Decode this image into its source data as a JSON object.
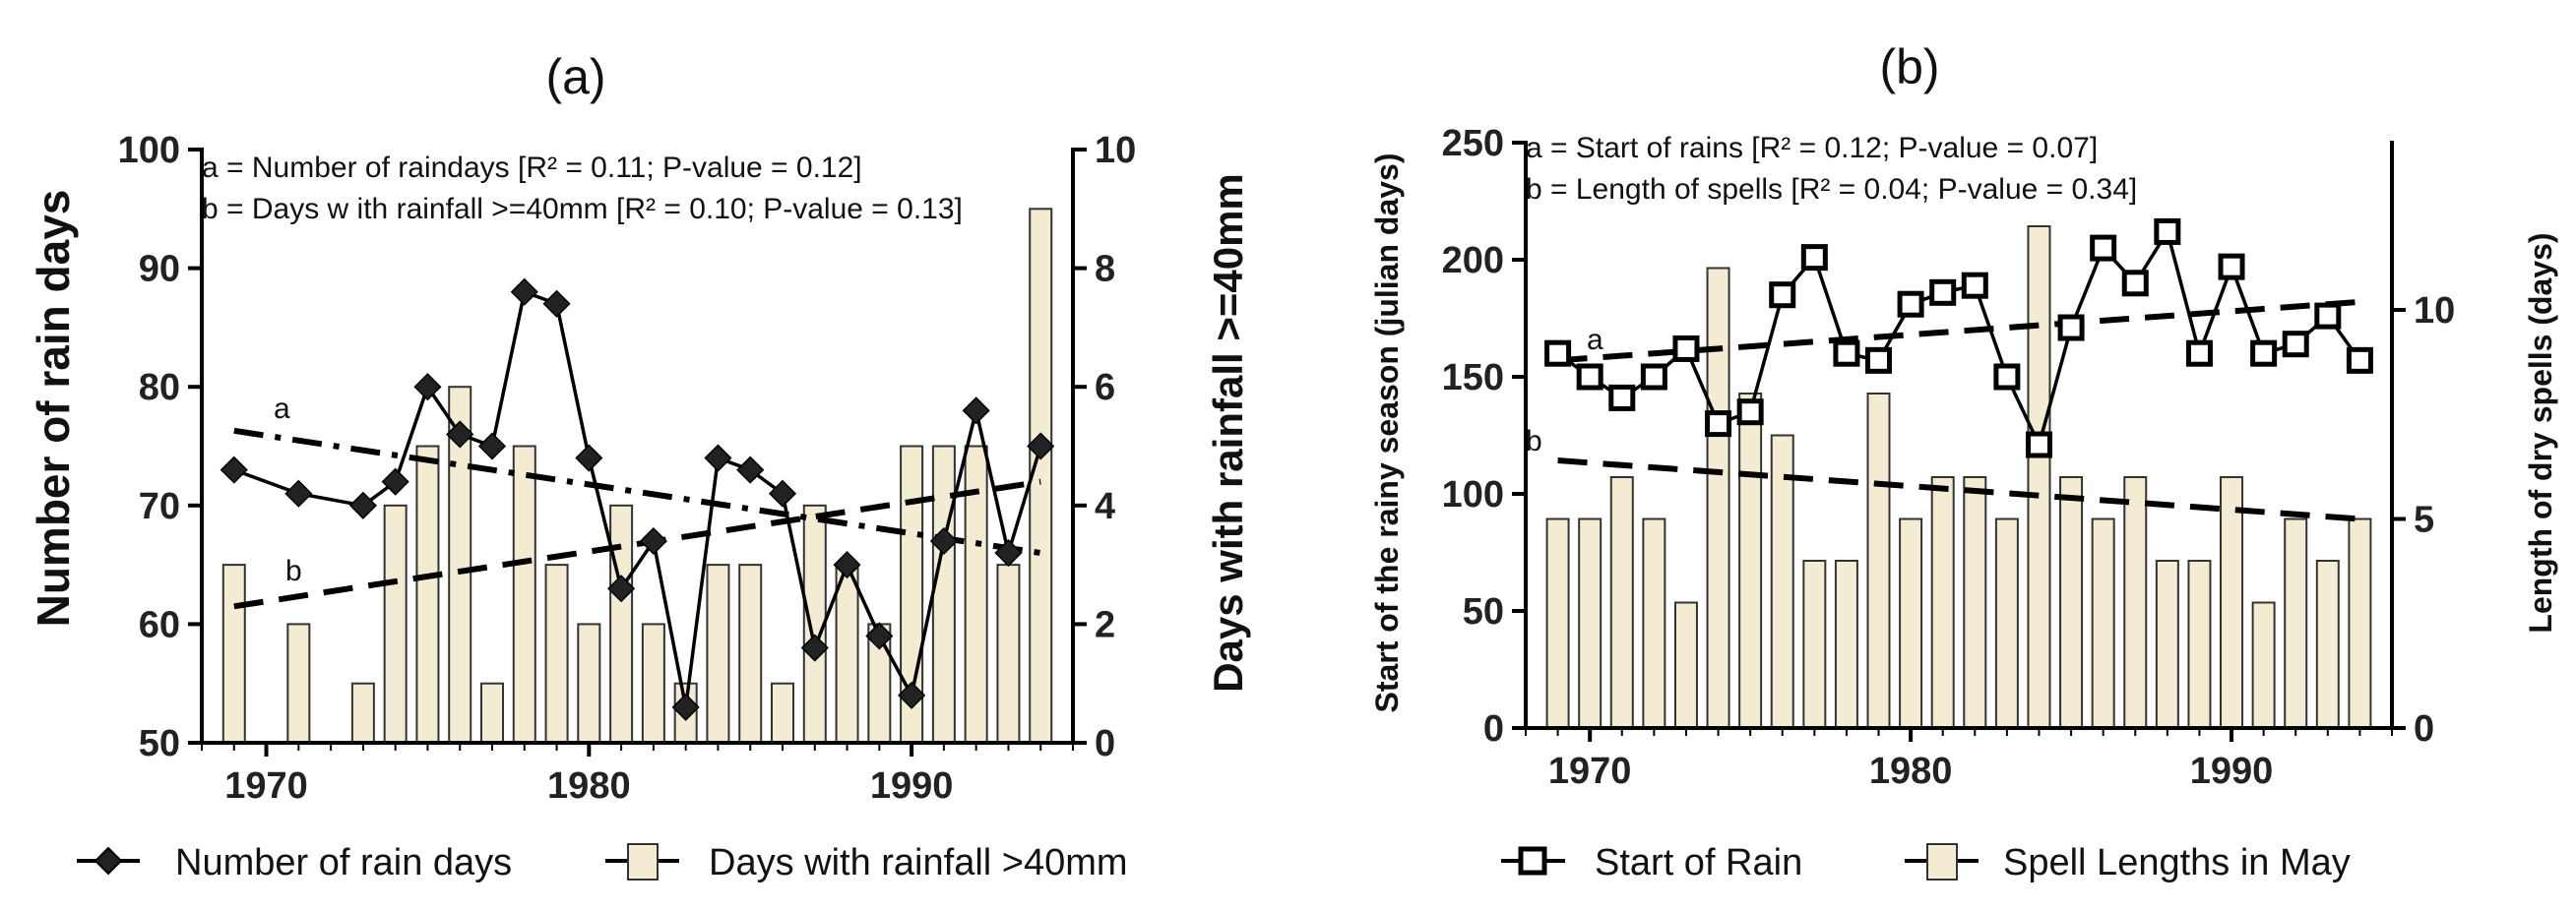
{
  "chart_data": [
    {
      "panel": "(a)",
      "type": "bar+line",
      "title": "(a)",
      "xlabel": "",
      "x_ticks": [
        1970,
        1980,
        1990
      ],
      "xlim": [
        1968,
        1995
      ],
      "y_left": {
        "label": "Number of rain days",
        "lim": [
          50,
          100
        ],
        "ticks": [
          50,
          60,
          70,
          80,
          90,
          100
        ]
      },
      "y_right": {
        "label": "Days with rainfall >=40mm",
        "lim": [
          0,
          10
        ],
        "ticks": [
          0,
          2,
          4,
          6,
          8,
          10
        ]
      },
      "annotations": [
        "a = Number of raindays [R² = 0.11; P-value = 0.12]",
        "b = Days w ith rainfall >=40mm  [R² = 0.10; P-value = 0.13]"
      ],
      "trend_labels": [
        "a",
        "b"
      ],
      "line_series": {
        "name": "Number of rain days",
        "axis": "left",
        "x": [
          1969,
          1971,
          1973,
          1974,
          1975,
          1976,
          1977,
          1978,
          1979,
          1980,
          1981,
          1982,
          1983,
          1984,
          1985,
          1986,
          1987,
          1988,
          1989,
          1990,
          1991,
          1992,
          1993,
          1994
        ],
        "values": [
          73,
          71,
          70,
          72,
          80,
          76,
          75,
          88,
          87,
          74,
          63,
          67,
          53,
          74,
          73,
          71,
          58,
          65,
          59,
          54,
          67,
          78,
          66,
          75
        ]
      },
      "bar_series": {
        "name": "Days with rainfall >40mm",
        "axis": "right",
        "x": [
          1969,
          1970,
          1971,
          1972,
          1973,
          1974,
          1975,
          1976,
          1977,
          1978,
          1979,
          1980,
          1981,
          1982,
          1983,
          1984,
          1985,
          1986,
          1987,
          1988,
          1989,
          1990,
          1991,
          1992,
          1993,
          1994
        ],
        "values": [
          3,
          0,
          2,
          0,
          1,
          4,
          5,
          6,
          1,
          5,
          3,
          2,
          4,
          2,
          1,
          3,
          3,
          1,
          4,
          3,
          2,
          5,
          5,
          5,
          3,
          9
        ]
      },
      "trends": [
        {
          "label": "a",
          "axis": "left",
          "x": [
            1969,
            1994
          ],
          "y": [
            76.3,
            66.0
          ]
        },
        {
          "label": "b",
          "axis": "right",
          "x": [
            1969,
            1994
          ],
          "y": [
            2.3,
            4.4
          ]
        }
      ],
      "legend": [
        "Number of rain days",
        "Days with rainfall >40mm"
      ]
    },
    {
      "panel": "(b)",
      "type": "bar+line",
      "title": "(b)",
      "xlabel": "",
      "x_ticks": [
        1970,
        1980,
        1990
      ],
      "xlim": [
        1968,
        1995
      ],
      "y_left": {
        "label": "Start of the rainy season (julian days)",
        "lim": [
          0,
          250
        ],
        "ticks": [
          0,
          50,
          100,
          150,
          200,
          250
        ]
      },
      "y_right": {
        "label": "Length of dry spells (days)",
        "lim": [
          0,
          14
        ],
        "ticks": [
          0,
          5,
          10
        ]
      },
      "annotations": [
        "a = Start of rains [R² = 0.12; P-value = 0.07]",
        "b = Length of spells [R² = 0.04; P-value = 0.34]"
      ],
      "trend_labels": [
        "a",
        "b"
      ],
      "line_series": {
        "name": "Start of Rain",
        "axis": "left",
        "x": [
          1969,
          1970,
          1971,
          1972,
          1973,
          1974,
          1975,
          1976,
          1977,
          1978,
          1979,
          1980,
          1981,
          1982,
          1983,
          1984,
          1985,
          1986,
          1987,
          1988,
          1989,
          1990,
          1991,
          1992,
          1993,
          1994
        ],
        "values": [
          160,
          150,
          141,
          150,
          162,
          130,
          135,
          185,
          201,
          160,
          157,
          181,
          186,
          189,
          150,
          121,
          171,
          205,
          190,
          212,
          160,
          197,
          160,
          164,
          176,
          157
        ]
      },
      "bar_series": {
        "name": "Spell Lengths in May",
        "axis": "right",
        "x": [
          1969,
          1970,
          1971,
          1972,
          1973,
          1974,
          1975,
          1976,
          1977,
          1978,
          1979,
          1980,
          1981,
          1982,
          1983,
          1984,
          1985,
          1986,
          1987,
          1988,
          1989,
          1990,
          1991,
          1992,
          1993,
          1994
        ],
        "values": [
          5,
          5,
          6,
          5,
          3,
          11,
          8,
          7,
          4,
          4,
          8,
          5,
          6,
          6,
          5,
          12,
          6,
          5,
          6,
          4,
          4,
          6,
          3,
          5,
          4,
          5
        ]
      },
      "trends": [
        {
          "label": "a",
          "axis": "left",
          "x": [
            1969,
            1994
          ],
          "y": [
            157,
            182
          ]
        },
        {
          "label": "b",
          "axis": "right",
          "x": [
            1969,
            1994
          ],
          "y": [
            6.4,
            5.0
          ]
        }
      ],
      "legend": [
        "Start of Rain",
        "Spell Lengths in May"
      ]
    }
  ]
}
